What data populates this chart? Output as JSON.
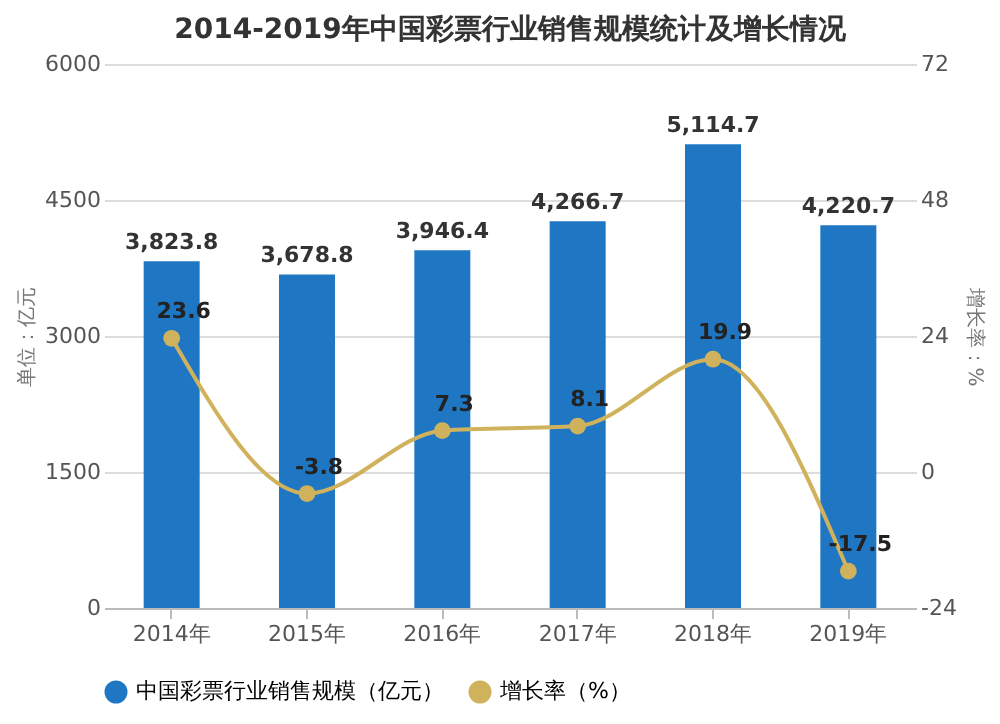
{
  "chart_data": {
    "type": "bar",
    "title": "2014-2019年中国彩票行业销售规模统计及增长情况",
    "categories": [
      "2014年",
      "2015年",
      "2016年",
      "2017年",
      "2018年",
      "2019年"
    ],
    "ylabel": "单位：亿元",
    "y2label": "增长率：%",
    "ylim": [
      0,
      6000
    ],
    "yticks": [
      0,
      1500,
      3000,
      4500,
      6000
    ],
    "y2lim": [
      -24,
      72
    ],
    "y2ticks": [
      -24,
      0,
      24,
      48,
      72
    ],
    "grid": "y",
    "legend": "bottom",
    "series": [
      {
        "name": "中国彩票行业销售规模（亿元）",
        "color": "#1f77c4",
        "values": [
          3823.8,
          3678.8,
          3946.4,
          4266.7,
          5114.7,
          4220.7
        ],
        "value_labels": [
          "3,823.8",
          "3,678.8",
          "3,946.4",
          "4,266.7",
          "5,114.7",
          "4,220.7"
        ]
      },
      {
        "name": "增长率（%）",
        "type": "line",
        "axis": "y2",
        "color": "#d1b25c",
        "marker": "circle",
        "values": [
          23.6,
          -3.8,
          7.3,
          8.1,
          19.9,
          -17.5
        ],
        "value_labels": [
          "23.6",
          "-3.8",
          "7.3",
          "8.1",
          "19.9",
          "-17.5"
        ]
      }
    ]
  }
}
